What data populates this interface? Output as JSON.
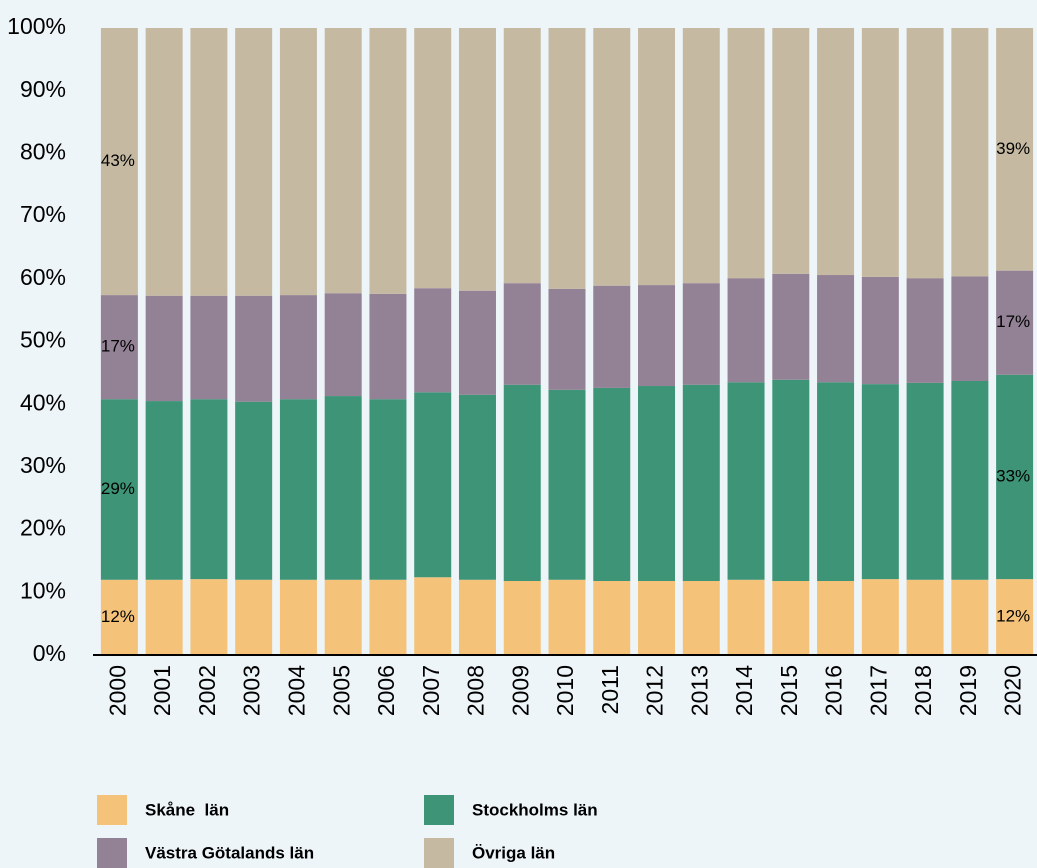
{
  "chart_data": {
    "type": "stacked_bar",
    "categories": [
      "2000",
      "2001",
      "2002",
      "2003",
      "2004",
      "2005",
      "2006",
      "2007",
      "2008",
      "2009",
      "2010",
      "2011",
      "2012",
      "2013",
      "2014",
      "2015",
      "2016",
      "2017",
      "2018",
      "2019",
      "2020"
    ],
    "series": [
      {
        "name": "Skåne  län",
        "color": "#f5c27a",
        "values": [
          12.0,
          12.0,
          12.1,
          12.0,
          12.0,
          12.0,
          12.0,
          12.4,
          12.0,
          11.8,
          12.0,
          11.8,
          11.8,
          11.8,
          12.0,
          11.8,
          11.8,
          12.1,
          12.0,
          12.0,
          12.1
        ],
        "value_labels": [
          "12%",
          null,
          null,
          null,
          null,
          null,
          null,
          null,
          null,
          null,
          null,
          null,
          null,
          null,
          null,
          null,
          null,
          null,
          null,
          null,
          "12%"
        ]
      },
      {
        "name": "Stockholms län",
        "color": "#3d9477",
        "values": [
          28.8,
          28.5,
          28.7,
          28.4,
          28.8,
          29.3,
          28.8,
          29.5,
          29.5,
          31.3,
          30.3,
          30.8,
          31.1,
          31.3,
          31.5,
          32.1,
          31.7,
          31.1,
          31.4,
          31.7,
          32.6
        ],
        "value_labels": [
          "29%",
          null,
          null,
          null,
          null,
          null,
          null,
          null,
          null,
          null,
          null,
          null,
          null,
          null,
          null,
          null,
          null,
          null,
          null,
          null,
          "33%"
        ]
      },
      {
        "name": "Västra Götalands län",
        "color": "#938195",
        "values": [
          16.6,
          16.8,
          16.5,
          16.9,
          16.6,
          16.4,
          16.8,
          16.6,
          16.6,
          16.2,
          16.1,
          16.3,
          16.1,
          16.2,
          16.6,
          16.9,
          17.1,
          17.1,
          16.7,
          16.7,
          16.6
        ],
        "value_labels": [
          "17%",
          null,
          null,
          null,
          null,
          null,
          null,
          null,
          null,
          null,
          null,
          null,
          null,
          null,
          null,
          null,
          null,
          null,
          null,
          null,
          "17%"
        ]
      },
      {
        "name": "Övriga län",
        "color": "#c5b9a2",
        "values": [
          42.6,
          42.7,
          42.7,
          42.7,
          42.6,
          42.3,
          42.4,
          41.5,
          41.9,
          40.7,
          41.6,
          41.1,
          41.0,
          40.7,
          39.9,
          39.2,
          39.4,
          39.7,
          39.9,
          39.6,
          38.7
        ],
        "value_labels": [
          "43%",
          null,
          null,
          null,
          null,
          null,
          null,
          null,
          null,
          null,
          null,
          null,
          null,
          null,
          null,
          null,
          null,
          null,
          null,
          null,
          "39%"
        ]
      }
    ],
    "ylim": [
      0,
      100
    ],
    "yticks": [
      {
        "value": 0,
        "label": "0%"
      },
      {
        "value": 10,
        "label": "10%"
      },
      {
        "value": 20,
        "label": "20%"
      },
      {
        "value": 30,
        "label": "30%"
      },
      {
        "value": 40,
        "label": "40%"
      },
      {
        "value": 50,
        "label": "50%"
      },
      {
        "value": 60,
        "label": "60%"
      },
      {
        "value": 70,
        "label": "70%"
      },
      {
        "value": 80,
        "label": "80%"
      },
      {
        "value": 90,
        "label": "90%"
      },
      {
        "value": 100,
        "label": "100%"
      }
    ],
    "grid": false
  }
}
